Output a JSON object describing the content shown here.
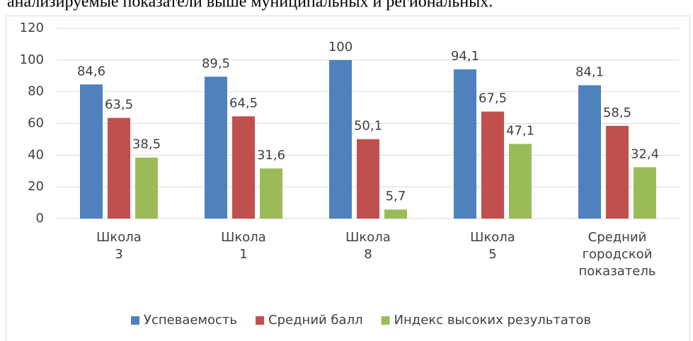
{
  "text": "анализируемые показатели выше муниципальных и региональных.",
  "chart_data": {
    "type": "bar",
    "categories": [
      "Школа 3",
      "Школа 1",
      "Школа 8",
      "Школа 5",
      "Средний городской показатель"
    ],
    "series": [
      {
        "name": "Успеваемость",
        "color": "#4f81bd",
        "values": [
          84.6,
          89.5,
          100,
          94.1,
          84.1
        ],
        "value_labels": [
          "84,6",
          "89,5",
          "100",
          "94,1",
          "84,1"
        ]
      },
      {
        "name": "Средний балл",
        "color": "#c0504d",
        "values": [
          63.5,
          64.5,
          50.1,
          67.5,
          58.5
        ],
        "value_labels": [
          "63,5",
          "64,5",
          "50,1",
          "67,5",
          "58,5"
        ]
      },
      {
        "name": "Индекс высоких результатов",
        "color": "#9bbb59",
        "values": [
          38.5,
          31.6,
          5.7,
          47.1,
          32.4
        ],
        "value_labels": [
          "38,5",
          "31,6",
          "5,7",
          "47,1",
          "32,4"
        ]
      }
    ],
    "ylim": [
      0,
      120
    ],
    "yticks": [
      0,
      20,
      40,
      60,
      80,
      100,
      120
    ],
    "grid": true,
    "legend": "bottom"
  }
}
